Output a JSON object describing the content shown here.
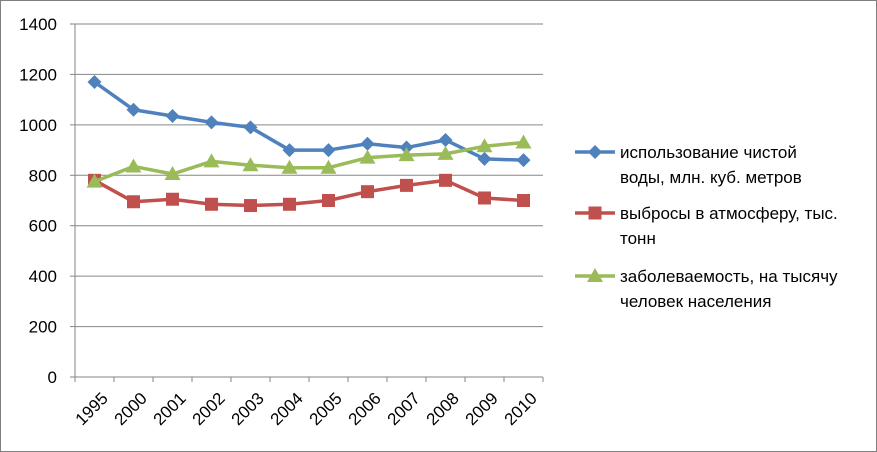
{
  "chart_data": {
    "type": "line",
    "title": "",
    "xlabel": "",
    "ylabel": "",
    "categories": [
      "1995",
      "2000",
      "2001",
      "2002",
      "2003",
      "2004",
      "2005",
      "2006",
      "2007",
      "2008",
      "2009",
      "2010"
    ],
    "ylim": [
      0,
      1400
    ],
    "yticks": [
      0,
      200,
      400,
      600,
      800,
      1000,
      1200,
      1400
    ],
    "grid": "horizontal",
    "legend_position": "right",
    "series": [
      {
        "name": "использование чистой воды, млн. куб. метров",
        "name_lines": [
          "использование чистой",
          "воды, млн. куб. метров"
        ],
        "color": "#4f81bd",
        "marker": "diamond",
        "values": [
          1170,
          1060,
          1035,
          1010,
          990,
          900,
          900,
          925,
          910,
          940,
          865,
          860
        ]
      },
      {
        "name": "выбросы в атмосферу, тыс. тонн",
        "name_lines": [
          "выбросы в атмосферу, тыс.",
          "тонн"
        ],
        "color": "#c0504d",
        "marker": "square",
        "values": [
          780,
          695,
          705,
          685,
          680,
          685,
          700,
          735,
          760,
          780,
          710,
          700
        ]
      },
      {
        "name": "заболеваемость, на тысячу человек населения",
        "name_lines": [
          "заболеваемость, на тысячу",
          "человек населения"
        ],
        "color": "#9bbb59",
        "marker": "triangle",
        "values": [
          775,
          835,
          805,
          855,
          840,
          830,
          830,
          870,
          880,
          885,
          915,
          930
        ]
      }
    ]
  }
}
